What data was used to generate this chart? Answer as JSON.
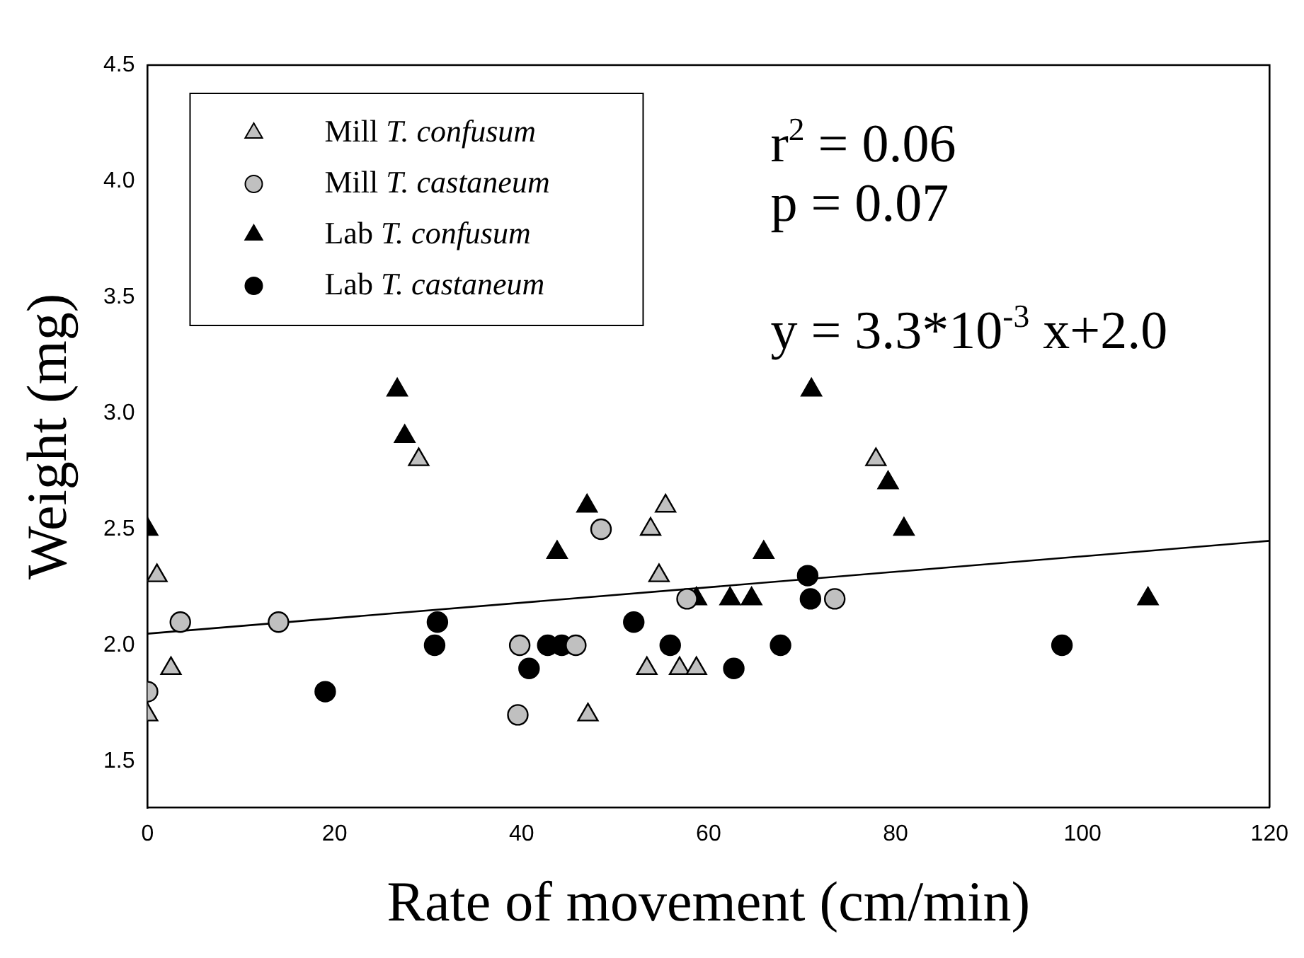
{
  "chart_data": {
    "type": "scatter",
    "xlabel": "Rate of movement (cm/min)",
    "ylabel": "Weight (mg)",
    "xlim": [
      0,
      120
    ],
    "xticks": [
      0,
      20,
      40,
      60,
      80,
      100,
      120
    ],
    "ylim": [
      1.3,
      4.5
    ],
    "yticks": [
      1.5,
      {
        "value": 2,
        "label": "2.0"
      },
      2.5,
      {
        "value": 3,
        "label": "3.0"
      },
      3.5,
      {
        "value": 4,
        "label": "4.0"
      },
      4.5
    ],
    "grid": false,
    "legend": "top left",
    "annotations": [
      "r$^{2}$ = 0.06",
      "p = 0.07",
      "y = 3.3*10$^{-3}$ x+2.0"
    ],
    "series": [
      {
        "name": "Mill T. confusum",
        "color": "#c0c0c0",
        "marker": "triangle",
        "x": [
          0,
          1,
          2.5,
          29,
          47.1,
          53.4,
          53.8,
          54.7,
          55.4,
          56.9,
          58.7,
          77.9
        ],
        "values": [
          1.7,
          2.3,
          1.9,
          2.8,
          1.7,
          1.9,
          2.5,
          2.3,
          2.6,
          1.9,
          1.9,
          2.8
        ]
      },
      {
        "name": "Mill T. castaneum",
        "color": "#c0c0c0",
        "marker": "circle",
        "x": [
          0,
          3.5,
          14,
          39.6,
          39.8,
          45.8,
          48.5,
          57.7,
          73.5
        ],
        "values": [
          1.8,
          2.1,
          2.1,
          1.7,
          2.0,
          2.0,
          2.5,
          2.2,
          2.2
        ]
      },
      {
        "name": "Lab T. confusum",
        "color": "#000000",
        "marker": "triangle",
        "x": [
          0,
          26.7,
          27.5,
          43.8,
          47.0,
          58.7,
          62.3,
          64.6,
          65.9,
          71,
          79.2,
          80.9,
          107
        ],
        "values": [
          2.5,
          3.1,
          2.9,
          2.4,
          2.6,
          2.2,
          2.2,
          2.2,
          2.4,
          3.1,
          2.7,
          2.5,
          2.2
        ]
      },
      {
        "name": "Lab T. castaneum",
        "color": "#000000",
        "marker": "circle",
        "x": [
          19,
          30.7,
          31,
          40.8,
          42.8,
          44.3,
          52,
          55.9,
          62.7,
          67.7,
          70.6,
          70.9,
          97.8
        ],
        "values": [
          1.8,
          2.0,
          2.1,
          1.9,
          2.0,
          2.0,
          2.1,
          2.0,
          1.9,
          2.0,
          2.3,
          2.2,
          2.0
        ]
      },
      {
        "type": "line",
        "color": "#000000",
        "marker": "none",
        "x": [
          0,
          120
        ],
        "values": [
          2.05,
          2.45
        ]
      }
    ]
  }
}
